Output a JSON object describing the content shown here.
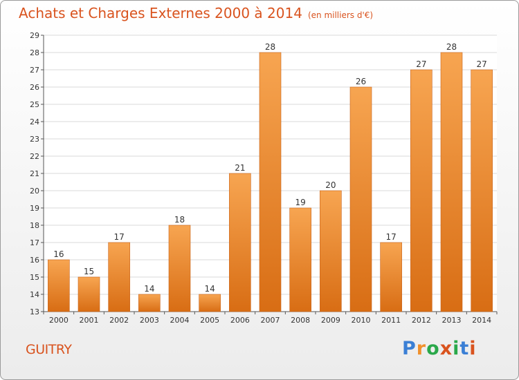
{
  "chart_data": {
    "type": "bar",
    "title": "Achats et Charges Externes 2000 à 2014",
    "subtitle": "(en milliers d'€)",
    "categories": [
      "2000",
      "2001",
      "2002",
      "2003",
      "2004",
      "2005",
      "2006",
      "2007",
      "2008",
      "2009",
      "2010",
      "2011",
      "2012",
      "2013",
      "2014"
    ],
    "values": [
      16,
      15,
      17,
      14,
      18,
      14,
      21,
      28,
      19,
      20,
      26,
      17,
      27,
      28,
      27
    ],
    "ylim": [
      13,
      29
    ],
    "yticks": [
      13,
      14,
      15,
      16,
      17,
      18,
      19,
      20,
      21,
      22,
      23,
      24,
      25,
      26,
      27,
      28,
      29
    ],
    "grid": true,
    "bar_color": "#f0902c"
  },
  "commune": "GUITRY",
  "logo": {
    "letters": [
      "P",
      "r",
      "o",
      "x",
      "i",
      "t",
      "i"
    ],
    "colors": [
      "#3a7fd5",
      "#f0902c",
      "#2aa84a",
      "#d9531e",
      "#2aa84a",
      "#3a7fd5",
      "#d9531e"
    ]
  }
}
